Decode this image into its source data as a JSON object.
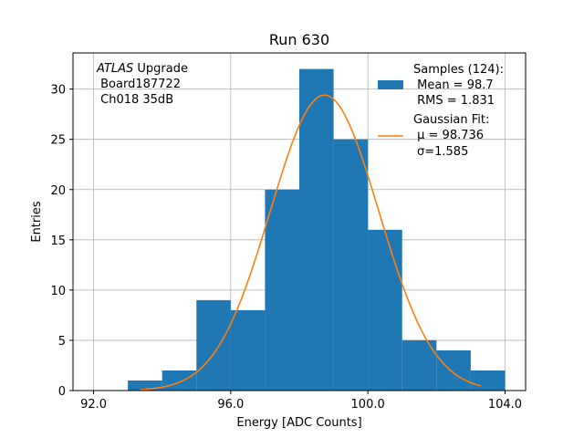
{
  "chart_data": {
    "type": "bar",
    "title": "Run 630",
    "xlabel": "Energy [ADC Counts]",
    "ylabel": "Entries",
    "xlim": [
      91.4,
      104.6
    ],
    "ylim": [
      0,
      33.6
    ],
    "x_ticks": [
      92.0,
      96.0,
      100.0,
      104.0
    ],
    "x_tick_labels": [
      "92.0",
      "96.0",
      "100.0",
      "104.0"
    ],
    "y_ticks": [
      0,
      5,
      10,
      15,
      20,
      25,
      30
    ],
    "y_tick_labels": [
      "0",
      "5",
      "10",
      "15",
      "20",
      "25",
      "30"
    ],
    "grid": true,
    "legend_position": "top-right",
    "colors": {
      "bars": "#1f77b4",
      "fit": "#ff7f0e"
    },
    "bins": [
      {
        "x0": 93,
        "x1": 94,
        "count": 1
      },
      {
        "x0": 94,
        "x1": 95,
        "count": 2
      },
      {
        "x0": 95,
        "x1": 96,
        "count": 9
      },
      {
        "x0": 96,
        "x1": 97,
        "count": 8
      },
      {
        "x0": 97,
        "x1": 98,
        "count": 20
      },
      {
        "x0": 98,
        "x1": 99,
        "count": 32
      },
      {
        "x0": 99,
        "x1": 100,
        "count": 25
      },
      {
        "x0": 100,
        "x1": 101,
        "count": 16
      },
      {
        "x0": 101,
        "x1": 102,
        "count": 5
      },
      {
        "x0": 102,
        "x1": 103,
        "count": 4
      },
      {
        "x0": 103,
        "x1": 104,
        "count": 2
      }
    ],
    "fit": {
      "type": "gaussian",
      "mu": 98.736,
      "sigma": 1.585,
      "amplitude": 29.4,
      "x_range": [
        93.35,
        103.3
      ]
    },
    "annotation": {
      "italic_prefix": "ATLAS",
      "line1_rest": " Upgrade",
      "line2": " Board187722",
      "line3": " Ch018 35dB"
    },
    "legend": {
      "samples_line1": "Samples (124):",
      "samples_line2": " Mean = 98.7",
      "samples_line3": " RMS = 1.831",
      "fit_line1": "Gaussian Fit:",
      "fit_line2": " μ = 98.736",
      "fit_line3": "σ=1.585"
    }
  }
}
